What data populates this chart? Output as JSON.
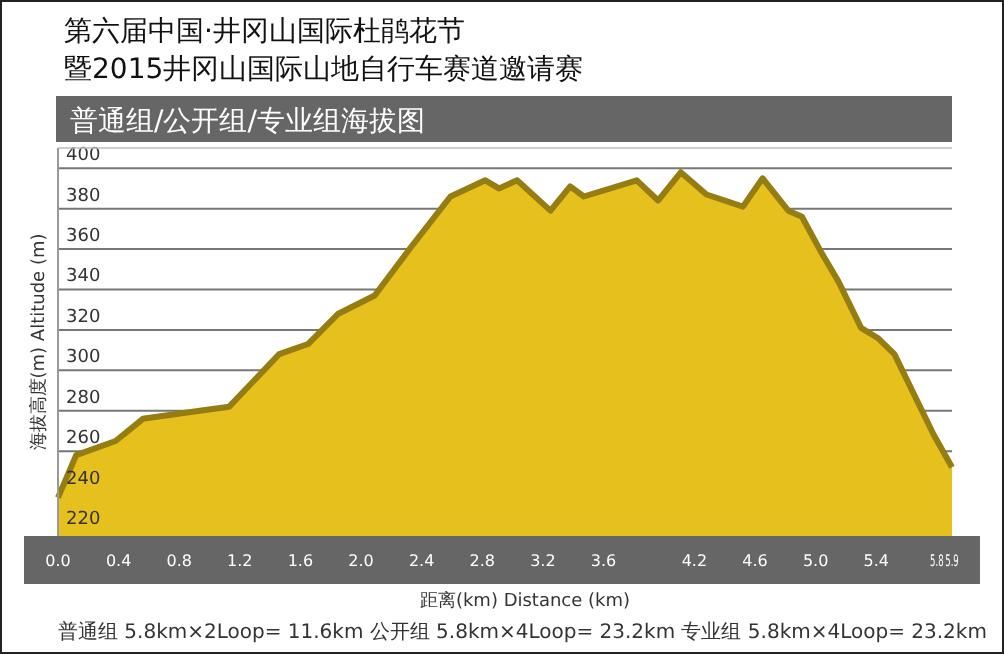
{
  "chart_data": {
    "type": "area",
    "title": "第六届中国·井冈山国际杜鹃花节",
    "subtitle": "暨2015井冈山国际山地自行车赛道邀请赛",
    "xlabel": "距离(km)  Distance (km)",
    "ylabel": "海拔高度(m)  Altitude (m)",
    "annotations": [
      "普通组/公开组/专业组海拔图",
      "普通组 5.8km×2Loop= 11.6km    公开组 5.8km×4Loop= 23.2km    专业组 5.8km×4Loop= 23.2km"
    ],
    "x": [
      0,
      0.12,
      0.38,
      0.56,
      0.84,
      1.13,
      1.46,
      1.65,
      1.85,
      2.09,
      2.33,
      2.59,
      2.82,
      2.91,
      3.03,
      3.25,
      3.38,
      3.47,
      3.82,
      3.96,
      4.11,
      4.28,
      4.52,
      4.65,
      4.82,
      4.91,
      5.04,
      5.15,
      5.3,
      5.41,
      5.52,
      5.78,
      5.9
    ],
    "series": [
      {
        "color": "#e6c01c",
        "values": [
          237,
          258,
          265,
          276,
          279,
          282,
          308,
          313,
          328,
          337,
          361,
          386,
          394,
          390,
          394,
          379,
          391,
          386,
          394,
          384,
          398,
          387,
          381,
          395,
          379,
          376,
          358,
          344,
          321,
          316,
          308,
          268,
          252
        ]
      }
    ],
    "xlim": [
      0,
      5.9
    ],
    "ylim": [
      218,
      410
    ],
    "xticks": [
      {
        "value": 0,
        "label": "0.0"
      },
      0.4,
      0.8,
      1.2,
      1.6,
      {
        "value": 2,
        "label": "2.0"
      },
      2.4,
      2.8,
      3.2,
      3.6,
      4.2,
      4.6,
      {
        "value": 5,
        "label": "5.0"
      },
      5.4,
      5.8,
      5.9
    ],
    "yticks": [
      220,
      240,
      260,
      280,
      300,
      320,
      340,
      360,
      380,
      400
    ],
    "grid": "y"
  }
}
